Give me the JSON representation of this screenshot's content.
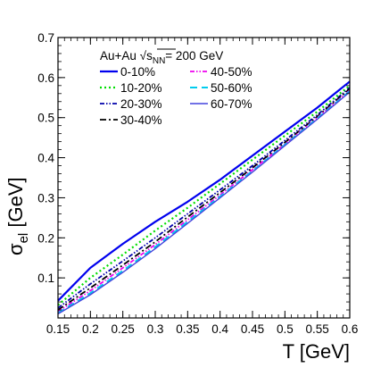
{
  "chart_data": {
    "type": "line",
    "title": "",
    "xlabel": "T [GeV]",
    "ylabel_main": "σ",
    "ylabel_sub": "el",
    "ylabel_unit": " [GeV]",
    "xlim": [
      0.15,
      0.6
    ],
    "ylim": [
      0,
      0.7
    ],
    "x_ticks": [
      0.15,
      0.2,
      0.25,
      0.3,
      0.35,
      0.4,
      0.45,
      0.5,
      0.55,
      0.6
    ],
    "x_tick_labels": [
      "0.15",
      "0.2",
      "0.25",
      "0.3",
      "0.35",
      "0.4",
      "0.45",
      "0.5",
      "0.55",
      "0.6"
    ],
    "y_ticks": [
      0.1,
      0.2,
      0.3,
      0.4,
      0.5,
      0.6,
      0.7
    ],
    "y_tick_labels": [
      "0.1",
      "0.2",
      "0.3",
      "0.4",
      "0.5",
      "0.6",
      "0.7"
    ],
    "grid": false,
    "legend_header": {
      "prefix": "Au+Au ",
      "sqrt_symbol": "√",
      "s_label": "s",
      "s_sub": "NN",
      "suffix": "= 200 GeV"
    },
    "legend_placement": "top-left",
    "series": [
      {
        "name": "0-10%",
        "color": "#0000ee",
        "dash": "solid",
        "width": 2.2,
        "x": [
          0.15,
          0.2,
          0.25,
          0.3,
          0.35,
          0.4,
          0.45,
          0.5,
          0.55,
          0.6
        ],
        "y": [
          0.043,
          0.125,
          0.185,
          0.24,
          0.29,
          0.345,
          0.405,
          0.465,
          0.525,
          0.59
        ]
      },
      {
        "name": "10-20%",
        "color": "#00dd00",
        "dash": "dot",
        "width": 2.2,
        "x": [
          0.15,
          0.2,
          0.25,
          0.3,
          0.35,
          0.4,
          0.45,
          0.5,
          0.55,
          0.6
        ],
        "y": [
          0.032,
          0.1,
          0.158,
          0.218,
          0.275,
          0.335,
          0.395,
          0.455,
          0.515,
          0.58
        ]
      },
      {
        "name": "20-30%",
        "color": "#0000aa",
        "dash": "dashdotdot",
        "width": 1.8,
        "x": [
          0.15,
          0.2,
          0.25,
          0.3,
          0.35,
          0.4,
          0.45,
          0.5,
          0.55,
          0.6
        ],
        "y": [
          0.025,
          0.085,
          0.142,
          0.2,
          0.26,
          0.32,
          0.38,
          0.443,
          0.507,
          0.575
        ]
      },
      {
        "name": "30-40%",
        "color": "#000000",
        "dash": "dashdot",
        "width": 1.8,
        "x": [
          0.15,
          0.2,
          0.25,
          0.3,
          0.35,
          0.4,
          0.45,
          0.5,
          0.55,
          0.6
        ],
        "y": [
          0.02,
          0.075,
          0.132,
          0.19,
          0.252,
          0.313,
          0.375,
          0.438,
          0.503,
          0.572
        ]
      },
      {
        "name": "40-50%",
        "color": "#ee00ee",
        "dash": "dashdotdot",
        "width": 1.8,
        "x": [
          0.15,
          0.2,
          0.25,
          0.3,
          0.35,
          0.4,
          0.45,
          0.5,
          0.55,
          0.6
        ],
        "y": [
          0.016,
          0.068,
          0.125,
          0.183,
          0.245,
          0.307,
          0.37,
          0.434,
          0.5,
          0.568
        ]
      },
      {
        "name": "50-60%",
        "color": "#00ccee",
        "dash": "dash",
        "width": 2.0,
        "x": [
          0.15,
          0.2,
          0.25,
          0.3,
          0.35,
          0.4,
          0.45,
          0.5,
          0.55,
          0.6
        ],
        "y": [
          0.012,
          0.062,
          0.118,
          0.177,
          0.24,
          0.303,
          0.367,
          0.432,
          0.498,
          0.566
        ]
      },
      {
        "name": "60-70%",
        "color": "#4444dd",
        "dash": "solid",
        "width": 1.4,
        "x": [
          0.15,
          0.2,
          0.25,
          0.3,
          0.35,
          0.4,
          0.45,
          0.5,
          0.55,
          0.6
        ],
        "y": [
          0.01,
          0.058,
          0.114,
          0.173,
          0.236,
          0.3,
          0.364,
          0.43,
          0.496,
          0.564
        ]
      }
    ]
  }
}
